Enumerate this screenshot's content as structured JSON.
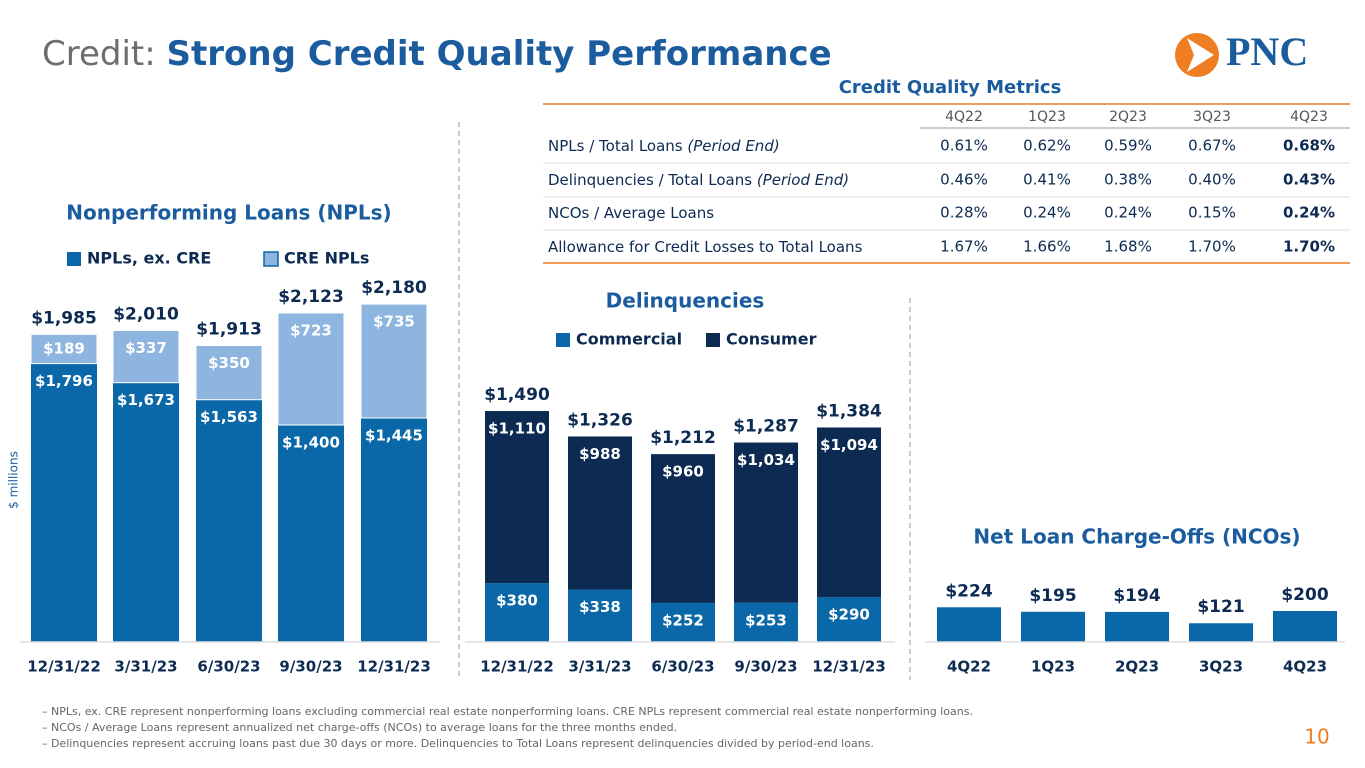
{
  "header": {
    "prefix": "Credit:",
    "title": "Strong Credit Quality Performance"
  },
  "logo": "PNC",
  "table": {
    "title": "Credit Quality Metrics",
    "columns": [
      "4Q22",
      "1Q23",
      "2Q23",
      "3Q23",
      "4Q23"
    ],
    "rows": [
      {
        "label": "NPLs / Total Loans",
        "note": "(Period End)",
        "values": [
          "0.61%",
          "0.62%",
          "0.59%",
          "0.67%",
          "0.68%"
        ]
      },
      {
        "label": "Delinquencies / Total Loans",
        "note": "(Period End)",
        "values": [
          "0.46%",
          "0.41%",
          "0.38%",
          "0.40%",
          "0.43%"
        ]
      },
      {
        "label": "NCOs / Average Loans",
        "values": [
          "0.28%",
          "0.24%",
          "0.24%",
          "0.15%",
          "0.24%"
        ]
      },
      {
        "label": "Allowance for Credit Losses to Total Loans",
        "values": [
          "1.67%",
          "1.66%",
          "1.68%",
          "1.70%",
          "1.70%"
        ]
      }
    ]
  },
  "chart_data": [
    {
      "type": "bar",
      "stacked": true,
      "title": "Nonperforming Loans (NPLs)",
      "y_label": "$ millions",
      "categories": [
        "12/31/22",
        "3/31/23",
        "6/30/23",
        "9/30/23",
        "12/31/23"
      ],
      "series": [
        {
          "name": "NPLs, ex. CRE",
          "color": "#0a67a8",
          "values": [
            1796,
            1673,
            1563,
            1400,
            1445
          ],
          "value_labels": [
            "$1,796",
            "$1,673",
            "$1,563",
            "$1,400",
            "$1,445"
          ]
        },
        {
          "name": "CRE NPLs",
          "color": "#8db5e0",
          "values": [
            189,
            337,
            350,
            723,
            735
          ],
          "value_labels": [
            "$189",
            "$337",
            "$350",
            "$723",
            "$735"
          ]
        }
      ],
      "totals": [
        1985,
        2010,
        1913,
        2123,
        2180
      ],
      "total_labels": [
        "$1,985",
        "$2,010",
        "$1,913",
        "$2,123",
        "$2,180"
      ]
    },
    {
      "type": "bar",
      "stacked": true,
      "title": "Delinquencies",
      "categories": [
        "12/31/22",
        "3/31/23",
        "6/30/23",
        "9/30/23",
        "12/31/23"
      ],
      "series": [
        {
          "name": "Commercial",
          "color": "#0a67a8",
          "values": [
            380,
            338,
            252,
            253,
            290
          ],
          "value_labels": [
            "$380",
            "$338",
            "$252",
            "$253",
            "$290"
          ]
        },
        {
          "name": "Consumer",
          "color": "#0d2b52",
          "values": [
            1110,
            988,
            960,
            1034,
            1094
          ],
          "value_labels": [
            "$1,110",
            "$988",
            "$960",
            "$1,034",
            "$1,094"
          ]
        }
      ],
      "totals": [
        1490,
        1326,
        1212,
        1287,
        1384
      ],
      "total_labels": [
        "$1,490",
        "$1,326",
        "$1,212",
        "$1,287",
        "$1,384"
      ]
    },
    {
      "type": "bar",
      "title": "Net Loan Charge-Offs (NCOs)",
      "categories": [
        "4Q22",
        "1Q23",
        "2Q23",
        "3Q23",
        "4Q23"
      ],
      "color": "#0a67a8",
      "values": [
        224,
        195,
        194,
        121,
        200
      ],
      "value_labels": [
        "$224",
        "$195",
        "$194",
        "$121",
        "$200"
      ]
    }
  ],
  "footnotes": [
    "– NPLs, ex. CRE represent nonperforming loans excluding commercial real estate nonperforming loans. CRE NPLs represent commercial real estate nonperforming loans.",
    "– NCOs / Average Loans represent annualized net charge-offs (NCOs) to average loans for the three months ended.",
    "– Delinquencies represent accruing loans past due 30 days or more. Delinquencies to Total Loans represent delinquencies divided by period-end loans."
  ],
  "page_number": 10
}
